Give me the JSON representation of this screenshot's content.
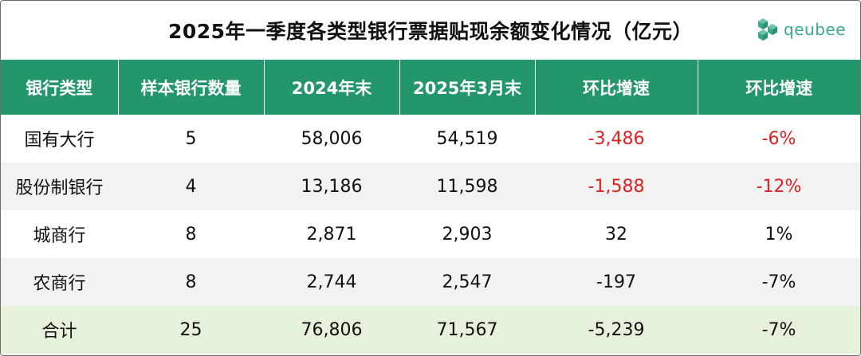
{
  "title": "2025年一季度各类型银行票据贴现余额变化情况（亿元）",
  "logo": {
    "text": "qeubee",
    "color": "#3aa88c"
  },
  "colors": {
    "header_bg": "#24966c",
    "negative": "#e02020",
    "total_bg": "#e6f1dc",
    "alt_bg": "#f2f2f2"
  },
  "table": {
    "headers": [
      "银行类型",
      "样本银行数量",
      "2024年末",
      "2025年3月末",
      "环比增速",
      "环比增速"
    ],
    "rows": [
      {
        "cells": [
          "国有大行",
          "5",
          "58,006",
          "54,519",
          "-3,486",
          "-6%"
        ],
        "negative_highlight": true
      },
      {
        "cells": [
          "股份制银行",
          "4",
          "13,186",
          "11,598",
          "-1,588",
          "-12%"
        ],
        "negative_highlight": true
      },
      {
        "cells": [
          "城商行",
          "8",
          "2,871",
          "2,903",
          "32",
          "1%"
        ],
        "negative_highlight": false
      },
      {
        "cells": [
          "农商行",
          "8",
          "2,744",
          "2,547",
          "-197",
          "-7%"
        ],
        "negative_highlight": false
      },
      {
        "cells": [
          "合计",
          "25",
          "76,806",
          "71,567",
          "-5,239",
          "-7%"
        ],
        "negative_highlight": false
      }
    ]
  }
}
